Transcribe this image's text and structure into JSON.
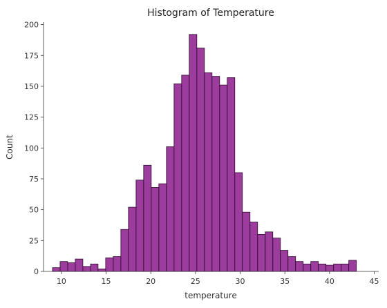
{
  "chart_data": {
    "type": "bar",
    "title": "Histogram of Temperature",
    "xlabel": "temperature",
    "ylabel": "Count",
    "xlim": [
      8,
      45.5
    ],
    "ylim": [
      0,
      202
    ],
    "xticks": [
      10,
      15,
      20,
      25,
      30,
      35,
      40,
      45
    ],
    "yticks": [
      0,
      25,
      50,
      75,
      100,
      125,
      150,
      175,
      200
    ],
    "grid": false,
    "legend": "none",
    "bar_color": "#8B1A8B",
    "bar_edge_color": "#2a0a2a",
    "bin_start": 9.0,
    "bin_width": 0.85,
    "counts": [
      3,
      8,
      7,
      10,
      4,
      6,
      2,
      11,
      12,
      34,
      52,
      74,
      86,
      68,
      71,
      101,
      152,
      159,
      192,
      181,
      161,
      158,
      151,
      157,
      80,
      48,
      40,
      30,
      32,
      27,
      17,
      12,
      8,
      6,
      8,
      6,
      5,
      6,
      6,
      9
    ]
  }
}
